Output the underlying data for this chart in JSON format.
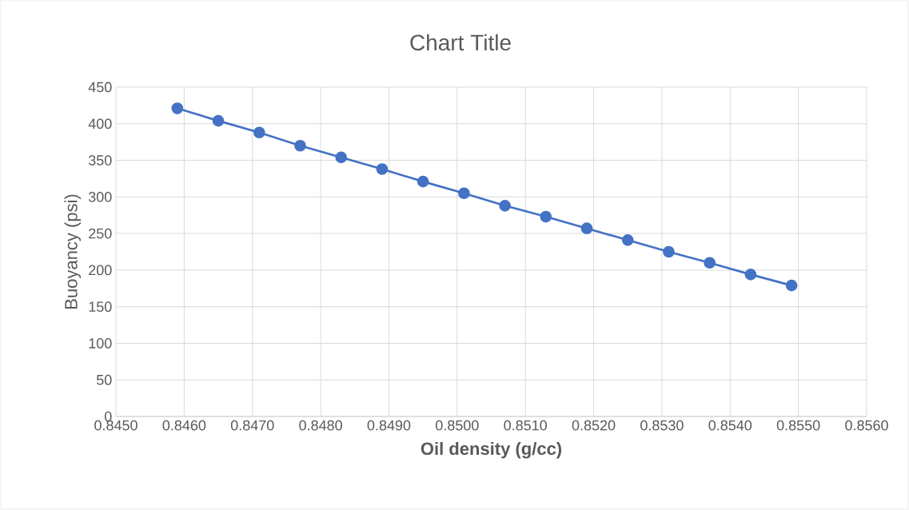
{
  "chart_data": {
    "type": "line",
    "title": "Chart Title",
    "xlabel": "Oil density (g/cc)",
    "ylabel": "Buoyancy (psi)",
    "x": [
      0.8459,
      0.8465,
      0.8471,
      0.8477,
      0.8483,
      0.8489,
      0.8495,
      0.8501,
      0.8507,
      0.8513,
      0.8519,
      0.8525,
      0.8531,
      0.8537,
      0.8543,
      0.8549
    ],
    "series": [
      {
        "color": "#4472c4",
        "values": [
          421,
          404,
          388,
          370,
          354,
          338,
          321,
          305,
          288,
          273,
          257,
          241,
          225,
          210,
          194,
          179
        ]
      }
    ],
    "xlim": [
      0.845,
      0.856
    ],
    "xticks": [
      {
        "value": 0.845,
        "label": "0.8450"
      },
      {
        "value": 0.846,
        "label": "0.8460"
      },
      {
        "value": 0.847,
        "label": "0.8470"
      },
      {
        "value": 0.848,
        "label": "0.8480"
      },
      {
        "value": 0.849,
        "label": "0.8490"
      },
      {
        "value": 0.85,
        "label": "0.8500"
      },
      {
        "value": 0.851,
        "label": "0.8510"
      },
      {
        "value": 0.852,
        "label": "0.8520"
      },
      {
        "value": 0.853,
        "label": "0.8530"
      },
      {
        "value": 0.854,
        "label": "0.8540"
      },
      {
        "value": 0.855,
        "label": "0.8550"
      },
      {
        "value": 0.856,
        "label": "0.8560"
      }
    ],
    "ylim": [
      0,
      450
    ],
    "yticks": [
      0,
      50,
      100,
      150,
      200,
      250,
      300,
      350,
      400,
      450
    ],
    "grid": true,
    "marker": "circle",
    "line_style": "solid"
  }
}
